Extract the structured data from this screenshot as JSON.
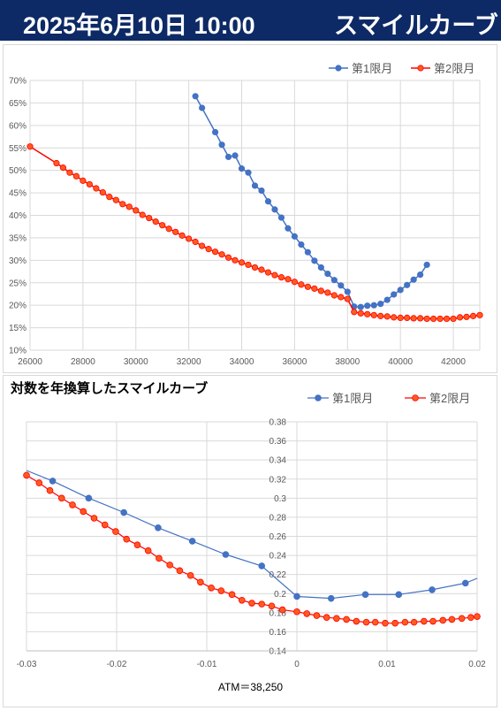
{
  "header": {
    "date_label": "2025年6月10日 10:00",
    "title": "スマイルカーブ",
    "background": "#0d2a66"
  },
  "colors": {
    "series1": "#4472c4",
    "series2": "#ff0000",
    "series2_fill": "#ff5a1f",
    "grid": "#d9d9d9"
  },
  "chart_data": [
    {
      "type": "line",
      "title": "",
      "legend_position": "top-right",
      "xlim": [
        26000,
        43000
      ],
      "ylim": [
        0.1,
        0.7
      ],
      "x_ticks": [
        "26000",
        "28000",
        "30000",
        "32000",
        "34000",
        "36000",
        "38000",
        "40000",
        "42000"
      ],
      "y_ticks": [
        "10%",
        "15%",
        "20%",
        "25%",
        "30%",
        "35%",
        "40%",
        "45%",
        "50%",
        "55%",
        "60%",
        "65%",
        "70%"
      ],
      "grid": true,
      "series": [
        {
          "name": "第1限月",
          "x": [
            32250,
            32500,
            33000,
            33250,
            33500,
            33750,
            34000,
            34250,
            34500,
            34750,
            35000,
            35250,
            35500,
            35750,
            36000,
            36250,
            36500,
            36750,
            37000,
            37250,
            37500,
            37750,
            38000,
            38250,
            38500,
            38750,
            39000,
            39250,
            39500,
            39750,
            40000,
            40250,
            40500,
            40750,
            41000
          ],
          "y": [
            0.665,
            0.639,
            0.585,
            0.557,
            0.53,
            0.533,
            0.504,
            0.495,
            0.466,
            0.455,
            0.431,
            0.413,
            0.395,
            0.371,
            0.353,
            0.335,
            0.318,
            0.299,
            0.284,
            0.27,
            0.256,
            0.244,
            0.23,
            0.197,
            0.196,
            0.199,
            0.2,
            0.203,
            0.212,
            0.224,
            0.234,
            0.245,
            0.257,
            0.268,
            0.29
          ]
        },
        {
          "name": "第2限月",
          "x": [
            26000,
            27000,
            27250,
            27500,
            27750,
            28000,
            28250,
            28500,
            28750,
            29000,
            29250,
            29500,
            29750,
            30000,
            30250,
            30500,
            30750,
            31000,
            31250,
            31500,
            31750,
            32000,
            32250,
            32500,
            32750,
            33000,
            33250,
            33500,
            33750,
            34000,
            34250,
            34500,
            34750,
            35000,
            35250,
            35500,
            35750,
            36000,
            36250,
            36500,
            36750,
            37000,
            37250,
            37500,
            37750,
            38000,
            38250,
            38500,
            38750,
            39000,
            39250,
            39500,
            39750,
            40000,
            40250,
            40500,
            40750,
            41000,
            41250,
            41500,
            41750,
            42000,
            42250,
            42500,
            42750,
            43000
          ],
          "y": [
            0.553,
            0.516,
            0.506,
            0.495,
            0.487,
            0.477,
            0.469,
            0.46,
            0.451,
            0.441,
            0.434,
            0.425,
            0.419,
            0.411,
            0.401,
            0.394,
            0.386,
            0.378,
            0.37,
            0.363,
            0.355,
            0.348,
            0.341,
            0.332,
            0.325,
            0.319,
            0.313,
            0.306,
            0.3,
            0.295,
            0.29,
            0.284,
            0.279,
            0.273,
            0.267,
            0.262,
            0.258,
            0.252,
            0.246,
            0.241,
            0.237,
            0.232,
            0.228,
            0.222,
            0.218,
            0.214,
            0.185,
            0.182,
            0.18,
            0.178,
            0.176,
            0.175,
            0.173,
            0.172,
            0.172,
            0.171,
            0.171,
            0.17,
            0.17,
            0.17,
            0.17,
            0.17,
            0.173,
            0.174,
            0.176,
            0.178
          ]
        }
      ]
    },
    {
      "type": "line",
      "title": "対数を年換算したスマイルカーブ",
      "legend_position": "top-right",
      "xlim": [
        -0.03,
        0.02
      ],
      "ylim": [
        0.14,
        0.38
      ],
      "x_ticks": [
        "-0.03",
        "-0.02",
        "-0.01",
        "0",
        "0.01",
        "0.02"
      ],
      "y_ticks": [
        "0.14",
        "0.16",
        "0.18",
        "0.2",
        "0.22",
        "0.24",
        "0.26",
        "0.28",
        "0.3",
        "0.32",
        "0.34",
        "0.36",
        "0.38"
      ],
      "xlabel": "ATM＝38,250",
      "grid": true,
      "series": [
        {
          "name": "第1限月",
          "x": [
            -0.03,
            -0.0271,
            -0.0231,
            -0.0192,
            -0.0154,
            -0.0116,
            -0.0079,
            -0.0039,
            0.0,
            0.0038,
            0.0076,
            0.0113,
            0.015,
            0.0187,
            0.02
          ],
          "y": [
            0.329,
            0.318,
            0.3,
            0.285,
            0.269,
            0.255,
            0.241,
            0.229,
            0.197,
            0.195,
            0.199,
            0.199,
            0.204,
            0.211,
            0.216
          ]
        },
        {
          "name": "第2限月",
          "x": [
            -0.03,
            -0.0286,
            -0.0274,
            -0.0261,
            -0.0249,
            -0.0237,
            -0.0225,
            -0.0213,
            -0.0201,
            -0.0189,
            -0.0177,
            -0.0165,
            -0.0153,
            -0.0141,
            -0.013,
            -0.0118,
            -0.0107,
            -0.0095,
            -0.0084,
            -0.0072,
            -0.0061,
            -0.005,
            -0.0039,
            -0.0028,
            -0.0016,
            0.0,
            0.0011,
            0.0022,
            0.0033,
            0.0044,
            0.0055,
            0.0066,
            0.0077,
            0.0087,
            0.0098,
            0.0109,
            0.012,
            0.013,
            0.0141,
            0.0151,
            0.0162,
            0.0172,
            0.0183,
            0.0193,
            0.02
          ],
          "y": [
            0.324,
            0.316,
            0.308,
            0.3,
            0.293,
            0.286,
            0.279,
            0.272,
            0.265,
            0.257,
            0.251,
            0.245,
            0.237,
            0.23,
            0.224,
            0.219,
            0.212,
            0.206,
            0.203,
            0.199,
            0.193,
            0.19,
            0.189,
            0.187,
            0.183,
            0.181,
            0.179,
            0.177,
            0.175,
            0.174,
            0.173,
            0.171,
            0.17,
            0.17,
            0.169,
            0.169,
            0.17,
            0.17,
            0.171,
            0.171,
            0.172,
            0.173,
            0.174,
            0.175,
            0.176
          ]
        }
      ]
    }
  ]
}
